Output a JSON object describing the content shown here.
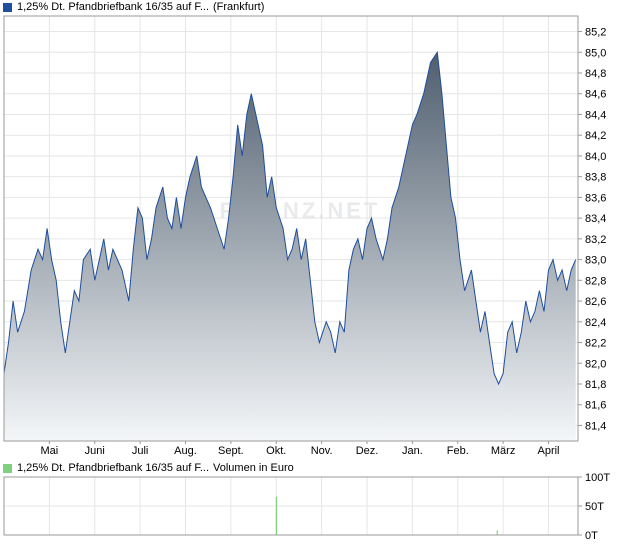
{
  "colors": {
    "price_line": "#1f4e9c",
    "price_fill_top": "#4f5e6e",
    "price_fill_bottom": "#f4f6f8",
    "volume_bar": "#7fd07f",
    "grid": "#e6e6e6",
    "border": "#9a9a9a",
    "price_legend_swatch": "#1f4e9c",
    "volume_legend_swatch": "#7fd07f"
  },
  "watermark": "FINANZ.NET",
  "chart_data": [
    {
      "type": "area",
      "legend": [
        "1,25% Dt. Pfandbriefbank 16/35 auf F...",
        "(Frankfurt)"
      ],
      "ylim": [
        81.25,
        85.35
      ],
      "y_ticks": [
        81.4,
        81.6,
        81.8,
        82.0,
        82.2,
        82.4,
        82.6,
        82.8,
        83.0,
        83.2,
        83.4,
        83.6,
        83.8,
        84.0,
        84.2,
        84.4,
        84.6,
        84.8,
        85.0,
        85.2
      ],
      "y_tick_labels": [
        "81,4",
        "81,6",
        "81,8",
        "82,0",
        "82,2",
        "82,4",
        "82,6",
        "82,8",
        "83,0",
        "83,2",
        "83,4",
        "83,6",
        "83,8",
        "84,0",
        "84,2",
        "84,4",
        "84,6",
        "84,8",
        "85,0",
        "85,2"
      ],
      "xlim": [
        0,
        12.65
      ],
      "x_ticks": [
        1,
        2,
        3,
        4,
        5,
        6,
        7,
        8,
        9,
        10,
        11,
        12
      ],
      "x_tick_labels": [
        "Mai",
        "Juni",
        "Juli",
        "Aug.",
        "Sept.",
        "Okt.",
        "Nov.",
        "Dez.",
        "Jan.",
        "Feb.",
        "März",
        "April"
      ],
      "grid": true,
      "x": [
        0.0,
        0.1,
        0.2,
        0.3,
        0.45,
        0.6,
        0.75,
        0.85,
        0.95,
        1.05,
        1.15,
        1.25,
        1.35,
        1.45,
        1.55,
        1.65,
        1.75,
        1.9,
        2.0,
        2.1,
        2.2,
        2.3,
        2.4,
        2.5,
        2.6,
        2.75,
        2.85,
        2.95,
        3.05,
        3.15,
        3.25,
        3.35,
        3.5,
        3.6,
        3.7,
        3.8,
        3.9,
        4.0,
        4.1,
        4.25,
        4.35,
        4.45,
        4.55,
        4.7,
        4.85,
        4.95,
        5.05,
        5.15,
        5.25,
        5.35,
        5.45,
        5.6,
        5.7,
        5.8,
        5.9,
        6.0,
        6.15,
        6.25,
        6.35,
        6.45,
        6.55,
        6.65,
        6.75,
        6.85,
        6.95,
        7.1,
        7.2,
        7.3,
        7.4,
        7.5,
        7.6,
        7.7,
        7.8,
        7.9,
        8.0,
        8.1,
        8.2,
        8.35,
        8.45,
        8.55,
        8.7,
        8.85,
        9.0,
        9.1,
        9.25,
        9.4,
        9.55,
        9.65,
        9.75,
        9.85,
        9.95,
        10.05,
        10.15,
        10.3,
        10.4,
        10.5,
        10.6,
        10.7,
        10.8,
        10.9,
        11.0,
        11.1,
        11.2,
        11.3,
        11.4,
        11.5,
        11.6,
        11.7,
        11.8,
        11.9,
        12.0,
        12.1,
        12.2,
        12.3,
        12.4,
        12.5,
        12.6
      ],
      "y": [
        81.9,
        82.2,
        82.6,
        82.3,
        82.5,
        82.9,
        83.1,
        83.0,
        83.3,
        83.0,
        82.8,
        82.4,
        82.1,
        82.4,
        82.7,
        82.6,
        83.0,
        83.1,
        82.8,
        83.0,
        83.2,
        82.9,
        83.1,
        83.0,
        82.9,
        82.6,
        83.1,
        83.5,
        83.4,
        83.0,
        83.2,
        83.5,
        83.7,
        83.4,
        83.3,
        83.6,
        83.3,
        83.6,
        83.8,
        84.0,
        83.7,
        83.6,
        83.5,
        83.3,
        83.1,
        83.4,
        83.8,
        84.3,
        84.0,
        84.4,
        84.6,
        84.3,
        84.1,
        83.6,
        83.8,
        83.5,
        83.3,
        83.0,
        83.1,
        83.3,
        83.0,
        83.2,
        82.8,
        82.4,
        82.2,
        82.4,
        82.3,
        82.1,
        82.4,
        82.3,
        82.9,
        83.1,
        83.2,
        83.0,
        83.3,
        83.4,
        83.2,
        83.0,
        83.2,
        83.5,
        83.7,
        84.0,
        84.3,
        84.4,
        84.6,
        84.9,
        85.0,
        84.6,
        84.1,
        83.6,
        83.4,
        83.0,
        82.7,
        82.9,
        82.6,
        82.3,
        82.5,
        82.2,
        81.9,
        81.8,
        81.9,
        82.3,
        82.4,
        82.1,
        82.3,
        82.6,
        82.4,
        82.5,
        82.7,
        82.5,
        82.9,
        83.0,
        82.8,
        82.9,
        82.7,
        82.9,
        83.0
      ]
    },
    {
      "type": "bar",
      "legend": [
        "1,25% Dt. Pfandbriefbank 16/35 auf F...",
        "Volumen in Euro"
      ],
      "ylim": [
        0,
        100
      ],
      "y_ticks": [
        0,
        50,
        100
      ],
      "y_tick_labels": [
        "0T",
        "50T",
        "100T"
      ],
      "xlim": [
        0,
        12.65
      ],
      "x": [
        6.0,
        10.87
      ],
      "values": [
        66,
        8
      ]
    }
  ]
}
